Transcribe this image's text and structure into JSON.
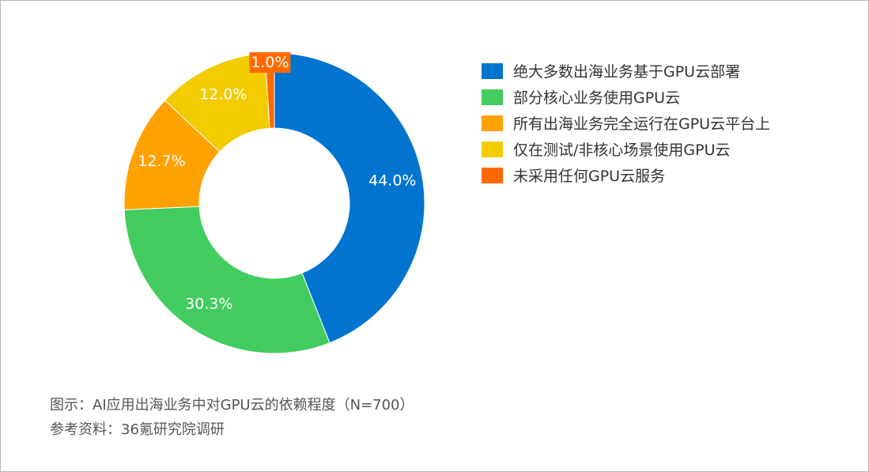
{
  "chart_data": {
    "type": "pie",
    "donut": true,
    "categories": [
      "绝大多数出海业务基于GPU云部署",
      "部分核心业务使用GPU云",
      "所有出海业务完全运行在GPU云平台上",
      "仅在测试/非核心场景使用GPU云",
      "未采用任何GPU云服务"
    ],
    "values": [
      44.0,
      30.3,
      12.7,
      12.0,
      1.0
    ],
    "value_labels": [
      "44.0%",
      "30.3%",
      "12.7%",
      "12.0%",
      "1.0%"
    ],
    "colors": [
      "#0074cf",
      "#43cc60",
      "#ffa100",
      "#f2cb00",
      "#ff6a00"
    ],
    "start_angle": "top",
    "direction": "clockwise",
    "legend_position": "right"
  },
  "footnotes": {
    "caption": "图示：AI应用出海业务中对GPU云的依赖程度（N=700）",
    "source": "参考资料：36氪研究院调研"
  }
}
